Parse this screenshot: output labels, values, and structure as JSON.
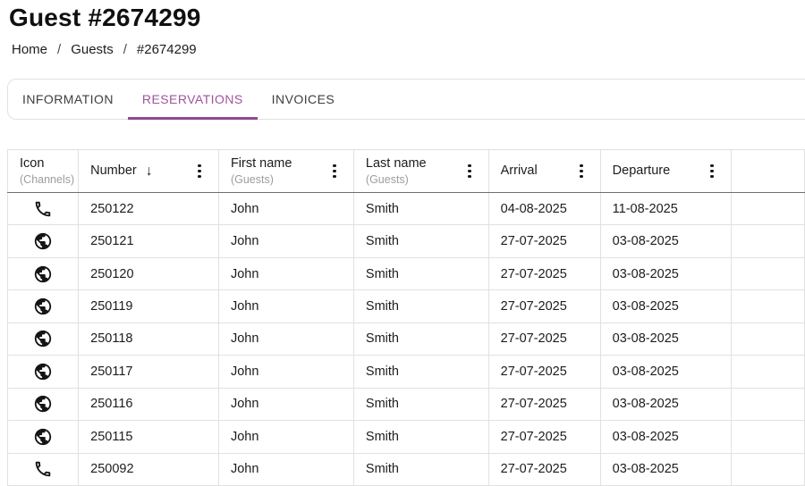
{
  "page": {
    "title": "Guest #2674299",
    "breadcrumb": {
      "separator": "/",
      "items": [
        "Home",
        "Guests",
        "#2674299"
      ]
    },
    "tabs": [
      {
        "label": "INFORMATION",
        "active": false
      },
      {
        "label": "RESERVATIONS",
        "active": true
      },
      {
        "label": "INVOICES",
        "active": false
      }
    ]
  },
  "theme": {
    "accent": "#a0549e",
    "accent_underline": "#914a8f",
    "grid_border": "#e1e1e1",
    "header_border": "#6f6f6f",
    "text_primary": "#1c1c1c",
    "text_secondary": "#9d9d9d"
  },
  "table": {
    "sort_icon": "↓",
    "menu_icon": "column-menu-kebab-icon",
    "columns": [
      {
        "label": "Icon",
        "sublabel": "(Channels)",
        "menu": false,
        "sort": null
      },
      {
        "label": "Number",
        "sublabel": "",
        "menu": true,
        "sort": "desc"
      },
      {
        "label": "First name",
        "sublabel": "(Guests)",
        "menu": true,
        "sort": null
      },
      {
        "label": "Last name",
        "sublabel": "(Guests)",
        "menu": true,
        "sort": null
      },
      {
        "label": "Arrival",
        "sublabel": "",
        "menu": true,
        "sort": null
      },
      {
        "label": "Departure",
        "sublabel": "",
        "menu": true,
        "sort": null
      }
    ],
    "rows": [
      {
        "channel_icon": "phone-icon",
        "number": "250122",
        "first_name": "John",
        "last_name": "Smith",
        "arrival": "04-08-2025",
        "departure": "11-08-2025"
      },
      {
        "channel_icon": "globe-icon",
        "number": "250121",
        "first_name": "John",
        "last_name": "Smith",
        "arrival": "27-07-2025",
        "departure": "03-08-2025"
      },
      {
        "channel_icon": "globe-icon",
        "number": "250120",
        "first_name": "John",
        "last_name": "Smith",
        "arrival": "27-07-2025",
        "departure": "03-08-2025"
      },
      {
        "channel_icon": "globe-icon",
        "number": "250119",
        "first_name": "John",
        "last_name": "Smith",
        "arrival": "27-07-2025",
        "departure": "03-08-2025"
      },
      {
        "channel_icon": "globe-icon",
        "number": "250118",
        "first_name": "John",
        "last_name": "Smith",
        "arrival": "27-07-2025",
        "departure": "03-08-2025"
      },
      {
        "channel_icon": "globe-icon",
        "number": "250117",
        "first_name": "John",
        "last_name": "Smith",
        "arrival": "27-07-2025",
        "departure": "03-08-2025"
      },
      {
        "channel_icon": "globe-icon",
        "number": "250116",
        "first_name": "John",
        "last_name": "Smith",
        "arrival": "27-07-2025",
        "departure": "03-08-2025"
      },
      {
        "channel_icon": "globe-icon",
        "number": "250115",
        "first_name": "John",
        "last_name": "Smith",
        "arrival": "27-07-2025",
        "departure": "03-08-2025"
      },
      {
        "channel_icon": "phone-icon",
        "number": "250092",
        "first_name": "John",
        "last_name": "Smith",
        "arrival": "27-07-2025",
        "departure": "03-08-2025"
      }
    ]
  }
}
